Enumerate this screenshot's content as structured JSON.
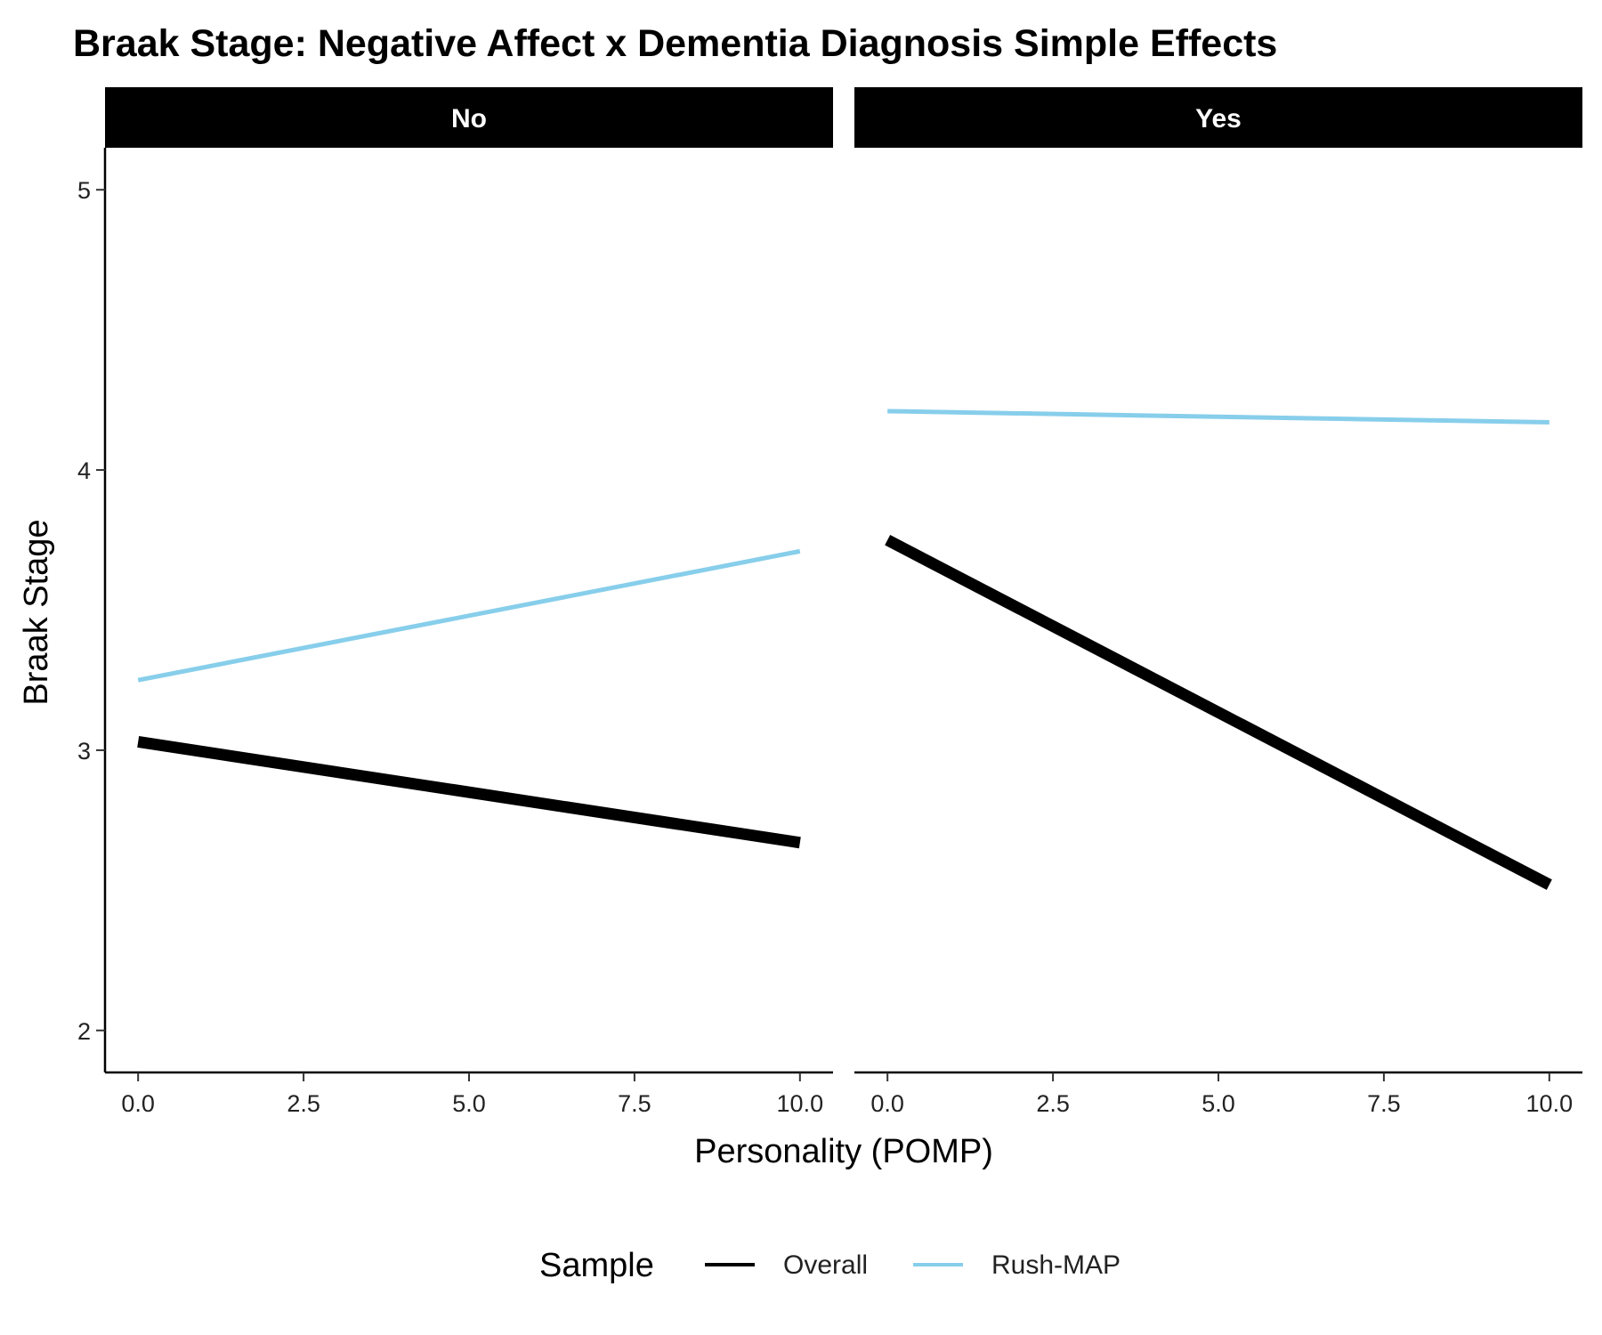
{
  "chart_data": {
    "type": "line",
    "title": "Braak Stage: Negative Affect x Dementia Diagnosis Simple Effects",
    "xlabel": "Personality (POMP)",
    "ylabel": "Braak Stage",
    "xlim": [
      -0.5,
      10.5
    ],
    "ylim": [
      1.85,
      5.15
    ],
    "x_ticks": [
      "0.0",
      "2.5",
      "5.0",
      "7.5",
      "10.0"
    ],
    "y_ticks": [
      "2",
      "3",
      "4",
      "5"
    ],
    "grid": false,
    "legend": {
      "title": "Sample",
      "placement": "bottom",
      "entries": [
        {
          "label": "Overall",
          "color": "#000000"
        },
        {
          "label": "Rush-MAP",
          "color": "#87ceeb"
        }
      ]
    },
    "facets": [
      {
        "label": "No",
        "series": [
          {
            "name": "Overall",
            "color": "#000000",
            "x": [
              0,
              10
            ],
            "y": [
              3.03,
              2.67
            ]
          },
          {
            "name": "Rush-MAP",
            "color": "#87ceeb",
            "x": [
              0,
              10
            ],
            "y": [
              3.25,
              3.71
            ]
          }
        ]
      },
      {
        "label": "Yes",
        "series": [
          {
            "name": "Overall",
            "color": "#000000",
            "x": [
              0,
              10
            ],
            "y": [
              3.75,
              2.52
            ]
          },
          {
            "name": "Rush-MAP",
            "color": "#87ceeb",
            "x": [
              0,
              10
            ],
            "y": [
              4.21,
              4.17
            ]
          }
        ]
      }
    ]
  }
}
